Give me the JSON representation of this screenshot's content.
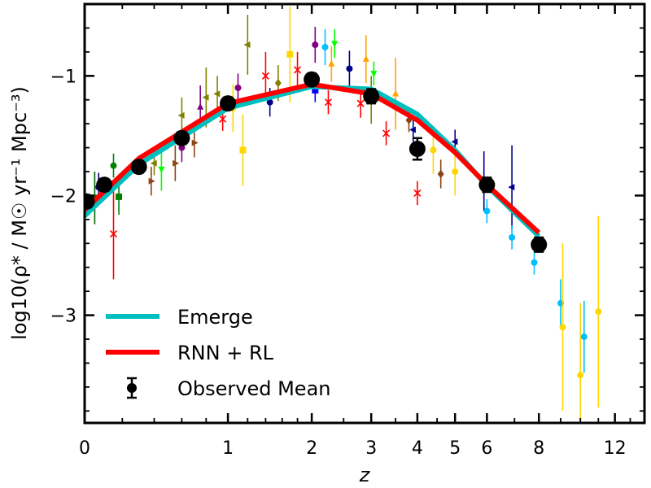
{
  "chart_data": {
    "type": "line",
    "xlabel": "z",
    "ylabel": "log10(ρ* / M☉ yr⁻¹ Mpc⁻³)",
    "x_scale": "log(1+z)",
    "xlim": [
      0,
      14
    ],
    "ylim": [
      -3.9,
      -0.4
    ],
    "x_ticks": [
      {
        "value": 0,
        "label": "0"
      },
      {
        "value": 1,
        "label": "1"
      },
      {
        "value": 2,
        "label": "2"
      },
      {
        "value": 3,
        "label": "3"
      },
      {
        "value": 4,
        "label": "4"
      },
      {
        "value": 5,
        "label": "5"
      },
      {
        "value": 6,
        "label": "6"
      },
      {
        "value": 8,
        "label": "8"
      },
      {
        "value": 12,
        "label": "12"
      }
    ],
    "y_ticks": [
      {
        "value": -1,
        "label": "−1"
      },
      {
        "value": -2,
        "label": "−2"
      },
      {
        "value": -3,
        "label": "−3"
      }
    ],
    "legend_position": "bottom-left",
    "series": [
      {
        "name": "Emerge",
        "color": "#00bfbf",
        "x": [
          0,
          0.3,
          1,
          2,
          3,
          4,
          5,
          6,
          8
        ],
        "y": [
          -2.17,
          -1.74,
          -1.27,
          -1.09,
          -1.11,
          -1.32,
          -1.62,
          -1.92,
          -2.34
        ]
      },
      {
        "name": "RNN + RL",
        "color": "#ff0000",
        "x": [
          0,
          0.3,
          1,
          2,
          3,
          4,
          5,
          6,
          8
        ],
        "y": [
          -2.12,
          -1.69,
          -1.23,
          -1.07,
          -1.15,
          -1.37,
          -1.64,
          -1.91,
          -2.31
        ]
      },
      {
        "name": "Observed Mean",
        "color": "#000000",
        "x": [
          0.01,
          0.1,
          0.3,
          0.6,
          1,
          2,
          3,
          4,
          6,
          8
        ],
        "y": [
          -2.05,
          -1.91,
          -1.76,
          -1.52,
          -1.23,
          -1.03,
          -1.17,
          -1.61,
          -1.91,
          -2.41
        ],
        "yerr": [
          0.05,
          0.05,
          0.05,
          0.05,
          0.05,
          0.05,
          0.06,
          0.09,
          0.06,
          0.06
        ]
      }
    ],
    "observations": [
      {
        "x": 0.05,
        "y": -2.02,
        "yerr": 0.22,
        "color": "#006400",
        "marker": "square"
      },
      {
        "x": 0.07,
        "y": -1.93,
        "yerr": 0.12,
        "color": "#00008b",
        "marker": "circle"
      },
      {
        "x": 0.15,
        "y": -2.32,
        "yerr": 0.38,
        "color": "#ff0000",
        "marker": "x"
      },
      {
        "x": 0.15,
        "y": -1.75,
        "yerr": 0.1,
        "color": "#008000",
        "marker": "circle"
      },
      {
        "x": 0.18,
        "y": -2.01,
        "yerr": 0.15,
        "color": "#008000",
        "marker": "square"
      },
      {
        "x": 0.38,
        "y": -1.88,
        "yerr": 0.12,
        "color": "#8b4513",
        "marker": "triangle-right"
      },
      {
        "x": 0.4,
        "y": -1.73,
        "yerr": 0.1,
        "color": "#808000",
        "marker": "triangle-left"
      },
      {
        "x": 0.45,
        "y": -1.78,
        "yerr": 0.18,
        "color": "#00ff00",
        "marker": "triangle-down"
      },
      {
        "x": 0.55,
        "y": -1.73,
        "yerr": 0.15,
        "color": "#8b4513",
        "marker": "triangle-right"
      },
      {
        "x": 0.6,
        "y": -1.33,
        "yerr": 0.15,
        "color": "#808000",
        "marker": "triangle-left"
      },
      {
        "x": 0.6,
        "y": -1.6,
        "yerr": 0.12,
        "color": "#800080",
        "marker": "circle"
      },
      {
        "x": 0.7,
        "y": -1.56,
        "yerr": 0.12,
        "color": "#8b4513",
        "marker": "triangle-right"
      },
      {
        "x": 0.75,
        "y": -1.26,
        "yerr": 0.18,
        "color": "#800080",
        "marker": "triangle-up"
      },
      {
        "x": 0.8,
        "y": -1.18,
        "yerr": 0.25,
        "color": "#808000",
        "marker": "triangle-left"
      },
      {
        "x": 0.9,
        "y": -1.15,
        "yerr": 0.15,
        "color": "#808000",
        "marker": "triangle-left"
      },
      {
        "x": 0.95,
        "y": -1.36,
        "yerr": 0.1,
        "color": "#ff0000",
        "marker": "x"
      },
      {
        "x": 1.05,
        "y": -1.27,
        "yerr": 0.2,
        "color": "#ffd700",
        "marker": "circle"
      },
      {
        "x": 1.1,
        "y": -1.1,
        "yerr": 0.12,
        "color": "#800080",
        "marker": "circle"
      },
      {
        "x": 1.15,
        "y": -1.62,
        "yerr": 0.3,
        "color": "#ffd700",
        "marker": "square"
      },
      {
        "x": 1.2,
        "y": -0.74,
        "yerr": 0.25,
        "color": "#808000",
        "marker": "triangle-left"
      },
      {
        "x": 1.4,
        "y": -1.0,
        "yerr": 0.2,
        "color": "#ff0000",
        "marker": "x"
      },
      {
        "x": 1.45,
        "y": -1.22,
        "yerr": 0.12,
        "color": "#00008b",
        "marker": "circle"
      },
      {
        "x": 1.55,
        "y": -1.06,
        "yerr": 0.15,
        "color": "#808000",
        "marker": "diamond"
      },
      {
        "x": 1.7,
        "y": -0.82,
        "yerr": 0.4,
        "color": "#ffd700",
        "marker": "square"
      },
      {
        "x": 1.8,
        "y": -0.95,
        "yerr": 0.15,
        "color": "#ff0000",
        "marker": "x"
      },
      {
        "x": 2.05,
        "y": -0.74,
        "yerr": 0.15,
        "color": "#800080",
        "marker": "circle"
      },
      {
        "x": 2.05,
        "y": -1.12,
        "yerr": 0.1,
        "color": "#0000ff",
        "marker": "square"
      },
      {
        "x": 2.2,
        "y": -0.76,
        "yerr": 0.15,
        "color": "#00bfff",
        "marker": "circle"
      },
      {
        "x": 2.25,
        "y": -1.22,
        "yerr": 0.1,
        "color": "#ff0000",
        "marker": "x"
      },
      {
        "x": 2.3,
        "y": -0.9,
        "yerr": 0.15,
        "color": "#ffa500",
        "marker": "triangle-up"
      },
      {
        "x": 2.35,
        "y": -0.73,
        "yerr": 0.12,
        "color": "#00ff00",
        "marker": "triangle-down"
      },
      {
        "x": 2.6,
        "y": -0.94,
        "yerr": 0.15,
        "color": "#00008b",
        "marker": "circle"
      },
      {
        "x": 2.8,
        "y": -1.23,
        "yerr": 0.12,
        "color": "#ff0000",
        "marker": "x"
      },
      {
        "x": 2.9,
        "y": -0.86,
        "yerr": 0.2,
        "color": "#ffa500",
        "marker": "triangle-up"
      },
      {
        "x": 3.0,
        "y": -1.2,
        "yerr": 0.2,
        "color": "#808000",
        "marker": "diamond"
      },
      {
        "x": 3.05,
        "y": -0.98,
        "yerr": 0.1,
        "color": "#00ff00",
        "marker": "triangle-down"
      },
      {
        "x": 3.3,
        "y": -1.48,
        "yerr": 0.1,
        "color": "#ff0000",
        "marker": "x"
      },
      {
        "x": 3.5,
        "y": -1.15,
        "yerr": 0.3,
        "color": "#ffa500",
        "marker": "triangle-up"
      },
      {
        "x": 3.8,
        "y": -1.37,
        "yerr": 0.1,
        "color": "#8b4513",
        "marker": "diamond"
      },
      {
        "x": 3.9,
        "y": -1.45,
        "yerr": 0.1,
        "color": "#00008b",
        "marker": "triangle-left"
      },
      {
        "x": 4.0,
        "y": -1.98,
        "yerr": 0.1,
        "color": "#ff0000",
        "marker": "x"
      },
      {
        "x": 4.4,
        "y": -1.62,
        "yerr": 0.2,
        "color": "#ffd700",
        "marker": "circle"
      },
      {
        "x": 4.6,
        "y": -1.82,
        "yerr": 0.12,
        "color": "#8b4513",
        "marker": "diamond"
      },
      {
        "x": 5.0,
        "y": -1.55,
        "yerr": 0.1,
        "color": "#00008b",
        "marker": "triangle-left"
      },
      {
        "x": 5.0,
        "y": -1.8,
        "yerr": 0.2,
        "color": "#ffd700",
        "marker": "circle"
      },
      {
        "x": 5.9,
        "y": -1.88,
        "yerr": 0.25,
        "color": "#00008b",
        "marker": "triangle-left"
      },
      {
        "x": 6.0,
        "y": -2.13,
        "yerr": 0.1,
        "color": "#00bfff",
        "marker": "circle"
      },
      {
        "x": 6.9,
        "y": -1.93,
        "yerr": 0.35,
        "color": "#00008b",
        "marker": "triangle-left"
      },
      {
        "x": 6.9,
        "y": -2.35,
        "yerr": 0.1,
        "color": "#00bfff",
        "marker": "circle"
      },
      {
        "x": 7.8,
        "y": -2.56,
        "yerr": 0.1,
        "color": "#00bfff",
        "marker": "circle"
      },
      {
        "x": 9.0,
        "y": -2.9,
        "yerr": 0.2,
        "color": "#00bfff",
        "marker": "circle"
      },
      {
        "x": 9.1,
        "y": -3.1,
        "yerr": 0.7,
        "color": "#ffd700",
        "marker": "circle"
      },
      {
        "x": 10.0,
        "y": -3.5,
        "yerr": 0.6,
        "color": "#ffd700",
        "marker": "circle"
      },
      {
        "x": 10.2,
        "y": -3.18,
        "yerr": 0.3,
        "color": "#00bfff",
        "marker": "circle"
      },
      {
        "x": 11.0,
        "y": -2.97,
        "yerr": 0.8,
        "color": "#ffd700",
        "marker": "circle"
      }
    ]
  }
}
